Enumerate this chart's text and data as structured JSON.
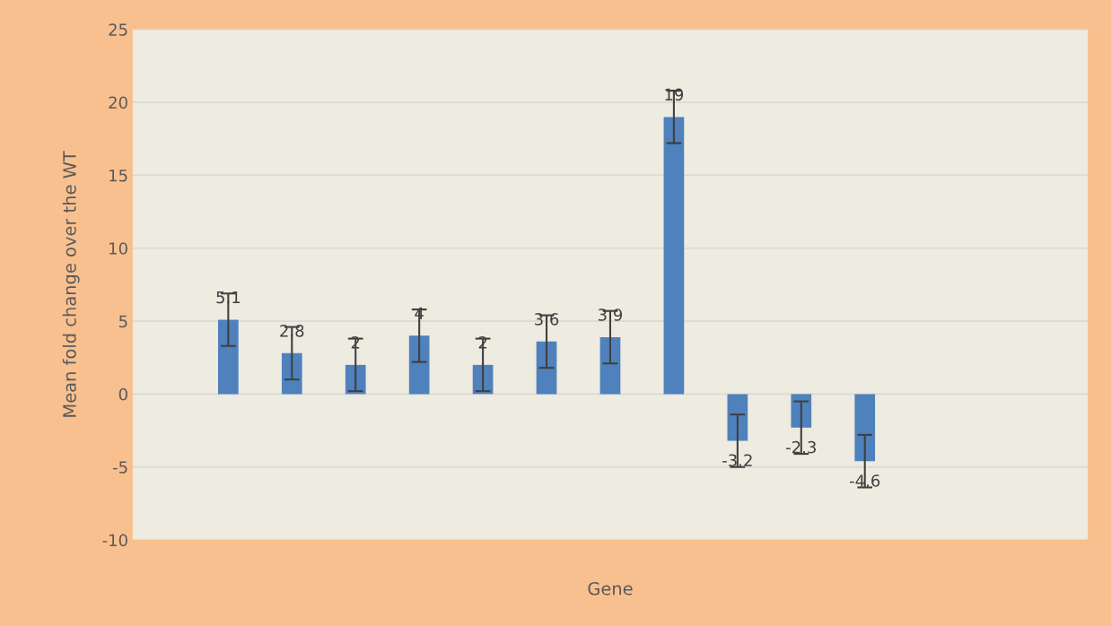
{
  "chart_data": {
    "type": "bar",
    "xlabel": "Gene",
    "ylabel": "Mean fold change over the WT",
    "categories": [
      null,
      null,
      null,
      null,
      null,
      null,
      null,
      null,
      null,
      null,
      null,
      null,
      null,
      null,
      null
    ],
    "values": [
      null,
      5.1,
      2.8,
      2,
      4,
      2,
      3.6,
      3.9,
      19,
      -3.2,
      -2.3,
      -4.6,
      null,
      null,
      null
    ],
    "errors": [
      null,
      1.8,
      1.8,
      1.8,
      1.8,
      1.8,
      1.8,
      1.8,
      1.8,
      1.8,
      1.8,
      1.8,
      null,
      null,
      null
    ],
    "color": "#4f81bd",
    "data_labels": true,
    "ylim": [
      -10,
      25
    ],
    "yticks": [
      -10,
      -5,
      0,
      5,
      10,
      15,
      20,
      25
    ],
    "grid": "y"
  }
}
